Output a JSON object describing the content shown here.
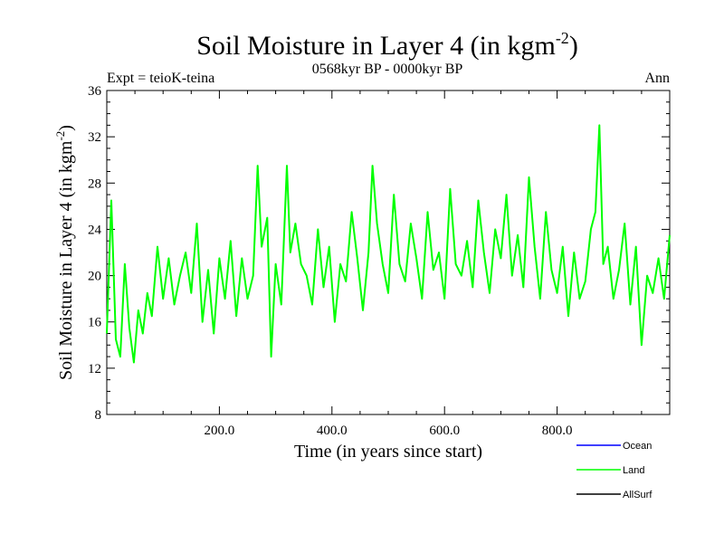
{
  "chart_data": {
    "type": "line",
    "title": "Soil Moisture in Layer 4 (in kgm",
    "title_sup": "-2",
    "title_close": ")",
    "subtitle_left": "Expt = teioK-teina",
    "subtitle_center": "0568kyr BP - 0000kyr BP",
    "subtitle_right": "Ann",
    "xlabel": "Time (in years since start)",
    "ylabel": "Soil Moisture in Layer 4 (in kgm",
    "ylabel_sup": "-2",
    "ylabel_close": ")",
    "xlim": [
      0,
      1000
    ],
    "ylim": [
      8,
      36
    ],
    "x_ticks": [
      200,
      400,
      600,
      800
    ],
    "x_tick_labels": [
      "200.0",
      "400.0",
      "600.0",
      "800.0"
    ],
    "y_ticks": [
      8,
      12,
      16,
      20,
      24,
      28,
      32,
      36
    ],
    "y_tick_labels": [
      "8",
      "12",
      "16",
      "20",
      "24",
      "28",
      "32",
      "36"
    ],
    "series": [
      {
        "name": "Land",
        "color": "#00ff00",
        "x": [
          0,
          8,
          16,
          24,
          32,
          40,
          48,
          56,
          64,
          72,
          80,
          90,
          100,
          110,
          120,
          130,
          140,
          150,
          160,
          170,
          180,
          190,
          200,
          210,
          220,
          230,
          240,
          250,
          260,
          268,
          275,
          285,
          292,
          300,
          310,
          320,
          326,
          335,
          345,
          355,
          365,
          375,
          385,
          395,
          405,
          415,
          425,
          435,
          445,
          455,
          465,
          472,
          480,
          490,
          500,
          510,
          520,
          530,
          540,
          550,
          560,
          570,
          580,
          590,
          600,
          610,
          620,
          630,
          640,
          650,
          660,
          670,
          680,
          690,
          700,
          710,
          720,
          730,
          740,
          750,
          760,
          770,
          780,
          790,
          800,
          810,
          820,
          830,
          840,
          850,
          860,
          868,
          875,
          882,
          890,
          900,
          910,
          920,
          930,
          940,
          950,
          960,
          970,
          980,
          990,
          1000
        ],
        "values": [
          15.0,
          26.5,
          14.5,
          13.0,
          21.0,
          15.5,
          12.5,
          17.0,
          15.0,
          18.5,
          16.5,
          22.5,
          18.0,
          21.5,
          17.5,
          20.0,
          22.0,
          18.5,
          24.5,
          16.0,
          20.5,
          15.0,
          21.5,
          18.0,
          23.0,
          16.5,
          21.5,
          18.0,
          20.0,
          29.5,
          22.5,
          25.0,
          13.0,
          21.0,
          17.5,
          29.5,
          22.0,
          24.5,
          21.0,
          20.0,
          17.5,
          24.0,
          19.0,
          22.5,
          16.0,
          21.0,
          19.5,
          25.5,
          21.5,
          17.0,
          22.0,
          29.5,
          24.5,
          21.0,
          18.5,
          27.0,
          21.0,
          19.5,
          24.5,
          21.5,
          18.0,
          25.5,
          20.5,
          22.0,
          18.0,
          27.5,
          21.0,
          20.0,
          23.0,
          19.0,
          26.5,
          22.0,
          18.5,
          24.0,
          21.5,
          27.0,
          20.0,
          23.5,
          19.0,
          28.5,
          22.5,
          18.0,
          25.5,
          20.5,
          18.5,
          22.5,
          16.5,
          22.0,
          18.0,
          19.5,
          24.0,
          25.5,
          33.0,
          21.0,
          22.5,
          18.0,
          20.5,
          24.5,
          17.5,
          22.5,
          14.0,
          20.0,
          18.5,
          21.5,
          18.0,
          23.5
        ]
      }
    ],
    "legend": [
      {
        "name": "Ocean",
        "color": "#0000ff"
      },
      {
        "name": "Land",
        "color": "#00ff00"
      },
      {
        "name": "AllSurf",
        "color": "#000000"
      }
    ],
    "legend_position": "bottom-right"
  }
}
